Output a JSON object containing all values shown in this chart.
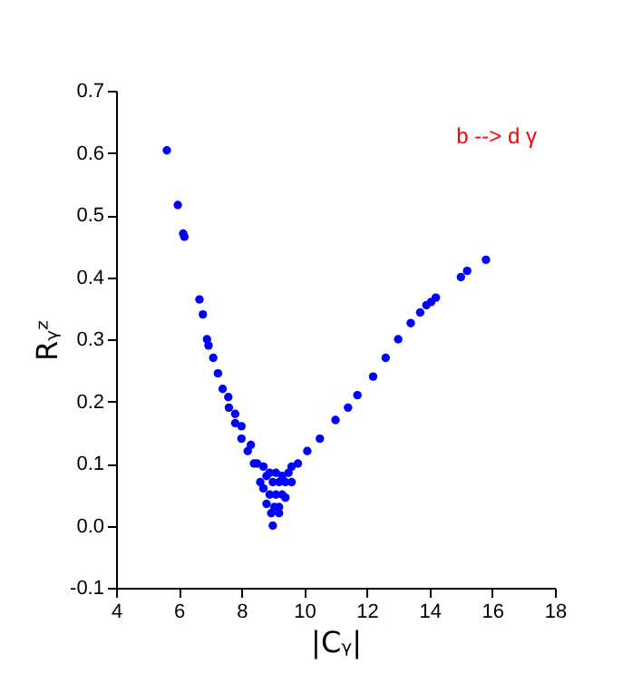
{
  "chart_data": {
    "type": "scatter",
    "xlabel": "|Cᵧ|",
    "ylabel": "Rᵧᶻ",
    "annotations": [
      "b --> d γ"
    ],
    "marker": "circle",
    "grid": false,
    "xlim": [
      4,
      18
    ],
    "xticks": [
      4,
      6,
      8,
      10,
      12,
      14,
      16,
      18
    ],
    "ylim": [
      -0.1,
      0.7
    ],
    "yticks": [
      -0.1,
      {
        "value": 0,
        "label": "0.0"
      },
      0.1,
      0.2,
      0.3,
      0.4,
      0.5,
      0.6,
      0.7
    ],
    "series": [
      {
        "color": "#0000ff",
        "x": [
          5.62,
          5.97,
          6.14,
          6.18,
          6.66,
          6.77,
          6.9,
          6.95,
          7.1,
          7.25,
          7.4,
          7.58,
          7.6,
          7.8,
          8.0,
          8.2,
          8.4,
          8.6,
          8.8,
          9.0,
          7.8,
          8.0,
          8.3,
          8.5,
          8.7,
          8.9,
          9.1,
          9.3,
          9.5,
          9.6,
          8.7,
          8.9,
          9.1,
          9.3,
          8.95,
          9.05,
          9.2,
          8.8,
          9.0,
          9.2,
          9.4,
          9.2,
          9.4,
          9.6,
          9.8,
          10.1,
          10.5,
          11.0,
          11.4,
          11.7,
          12.2,
          12.6,
          13.0,
          13.4,
          13.7,
          13.9,
          14.05,
          14.2,
          15.0,
          15.2,
          15.8
        ],
        "values": [
          0.604,
          0.516,
          0.47,
          0.465,
          0.364,
          0.34,
          0.3,
          0.29,
          0.27,
          0.245,
          0.22,
          0.207,
          0.19,
          0.165,
          0.14,
          0.12,
          0.1,
          0.07,
          0.035,
          0.0,
          0.18,
          0.16,
          0.13,
          0.1,
          0.095,
          0.085,
          0.085,
          0.08,
          0.085,
          0.095,
          0.06,
          0.05,
          0.05,
          0.05,
          0.02,
          0.03,
          0.03,
          0.08,
          0.07,
          0.07,
          0.07,
          0.02,
          0.045,
          0.07,
          0.1,
          0.12,
          0.14,
          0.17,
          0.19,
          0.21,
          0.24,
          0.27,
          0.3,
          0.326,
          0.343,
          0.355,
          0.36,
          0.367,
          0.4,
          0.41,
          0.428
        ]
      }
    ]
  }
}
